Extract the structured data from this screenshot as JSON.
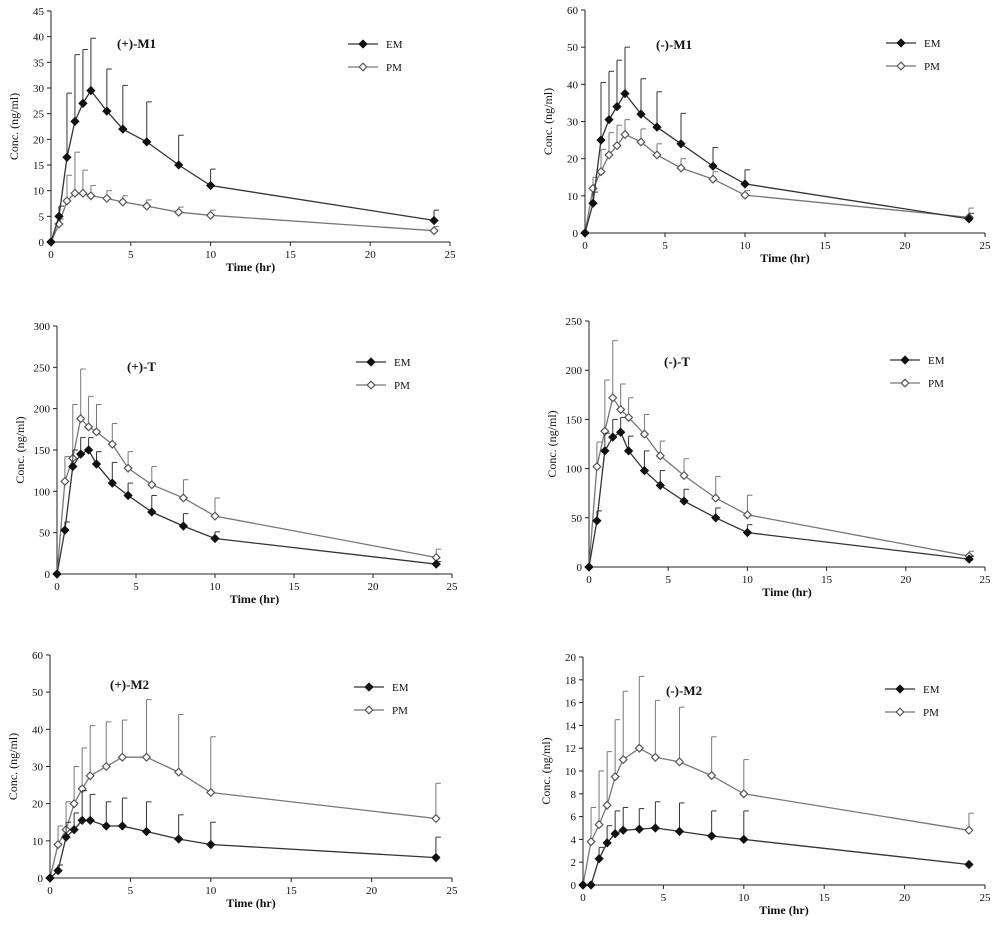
{
  "chart_data": [
    {
      "type": "line",
      "title": "(+)-M1",
      "xlabel": "Time (hr)",
      "ylabel": "Conc. (ng/ml)",
      "xlim": [
        0,
        25
      ],
      "ylim": [
        0,
        45
      ],
      "xticks": [
        0,
        5,
        10,
        15,
        20,
        25
      ],
      "yticks": [
        0,
        5,
        10,
        15,
        20,
        25,
        30,
        35,
        40,
        45
      ],
      "legend_position": "top-right",
      "x": [
        0,
        0.5,
        1,
        1.5,
        2,
        2.5,
        3.5,
        4.5,
        6,
        8,
        10,
        24
      ],
      "series": [
        {
          "name": "EM",
          "marker": "filled-diamond",
          "values": [
            0,
            5,
            16.5,
            23.5,
            27,
            29.5,
            25.5,
            22,
            19.5,
            15,
            11,
            4.2
          ],
          "error": [
            0,
            2,
            12.5,
            13,
            10.5,
            10.2,
            8.2,
            8.5,
            7.8,
            5.8,
            3.2,
            2
          ]
        },
        {
          "name": "PM",
          "marker": "open-diamond",
          "values": [
            0,
            3.5,
            8,
            9.5,
            9.5,
            9,
            8.5,
            7.8,
            7,
            5.8,
            5.2,
            2.2
          ],
          "error": [
            0,
            1,
            5,
            8,
            4.5,
            2,
            1.5,
            1.2,
            1.2,
            1,
            1,
            0.8
          ]
        }
      ]
    },
    {
      "type": "line",
      "title": "(-)-M1",
      "xlabel": "Time (hr)",
      "ylabel": "Conc. (ng/ml)",
      "xlim": [
        0,
        25
      ],
      "ylim": [
        0,
        60
      ],
      "xticks": [
        0,
        5,
        10,
        15,
        20,
        25
      ],
      "yticks": [
        0,
        10,
        20,
        30,
        40,
        50,
        60
      ],
      "legend_position": "top-right",
      "x": [
        0,
        0.5,
        1,
        1.5,
        2,
        2.5,
        3.5,
        4.5,
        6,
        8,
        10,
        24
      ],
      "series": [
        {
          "name": "EM",
          "marker": "filled-diamond",
          "values": [
            0,
            8,
            25,
            30.5,
            34,
            37.5,
            32,
            28.5,
            24,
            18,
            13.2,
            3.8
          ],
          "error": [
            0,
            3,
            15.5,
            13,
            12.5,
            12.5,
            9.5,
            9.5,
            8.2,
            5,
            3.8,
            1.5
          ]
        },
        {
          "name": "PM",
          "marker": "open-diamond",
          "values": [
            0,
            12,
            16.5,
            21,
            23.5,
            26.5,
            24.5,
            21,
            17.5,
            14.5,
            10.2,
            4.2
          ],
          "error": [
            0,
            3,
            6,
            6,
            5.5,
            4,
            3.5,
            3,
            2.5,
            2,
            1.2,
            2.5
          ]
        }
      ]
    },
    {
      "type": "line",
      "title": "(+)-T",
      "xlabel": "Time (hr)",
      "ylabel": "Conc. (ng/ml)",
      "xlim": [
        0,
        25
      ],
      "ylim": [
        0,
        300
      ],
      "xticks": [
        0,
        5,
        10,
        15,
        20,
        25
      ],
      "yticks": [
        0,
        50,
        100,
        150,
        200,
        250,
        300
      ],
      "legend_position": "top-right",
      "x": [
        0,
        0.5,
        1,
        1.5,
        2,
        2.5,
        3.5,
        4.5,
        6,
        8,
        10,
        24
      ],
      "series": [
        {
          "name": "EM",
          "marker": "filled-diamond",
          "values": [
            0,
            53,
            130,
            145,
            150,
            133,
            110,
            95,
            75,
            58,
            43,
            12
          ],
          "error": [
            0,
            10,
            20,
            20,
            15,
            15,
            25,
            15,
            20,
            15,
            8,
            3
          ]
        },
        {
          "name": "PM",
          "marker": "open-diamond",
          "values": [
            0,
            112,
            140,
            188,
            178,
            172,
            157,
            128,
            108,
            92,
            70,
            20
          ],
          "error": [
            0,
            30,
            65,
            60,
            37,
            33,
            25,
            20,
            22,
            22,
            22,
            10
          ]
        }
      ]
    },
    {
      "type": "line",
      "title": "(-)-T",
      "xlabel": "Time (hr)",
      "ylabel": "Conc. (ng/ml)",
      "xlim": [
        0,
        25
      ],
      "ylim": [
        0,
        250
      ],
      "xticks": [
        0,
        5,
        10,
        15,
        20,
        25
      ],
      "yticks": [
        0,
        50,
        100,
        150,
        200,
        250
      ],
      "legend_position": "top-right",
      "x": [
        0,
        0.5,
        1,
        1.5,
        2,
        2.5,
        3.5,
        4.5,
        6,
        8,
        10,
        24
      ],
      "series": [
        {
          "name": "EM",
          "marker": "filled-diamond",
          "values": [
            0,
            47,
            118,
            132,
            137,
            118,
            98,
            83,
            67,
            50,
            35,
            8
          ],
          "error": [
            0,
            10,
            18,
            18,
            15,
            15,
            20,
            15,
            12,
            10,
            8,
            3
          ]
        },
        {
          "name": "PM",
          "marker": "open-diamond",
          "values": [
            0,
            102,
            138,
            172,
            160,
            152,
            135,
            113,
            93,
            70,
            53,
            11
          ],
          "error": [
            0,
            25,
            52,
            58,
            26,
            20,
            20,
            15,
            17,
            22,
            20,
            5
          ]
        }
      ]
    },
    {
      "type": "line",
      "title": "(+)-M2",
      "xlabel": "Time (hr)",
      "ylabel": "Conc. (ng/ml)",
      "xlim": [
        0,
        25
      ],
      "ylim": [
        0,
        60
      ],
      "xticks": [
        0,
        5,
        10,
        15,
        20,
        25
      ],
      "yticks": [
        0,
        10,
        20,
        30,
        40,
        50,
        60
      ],
      "legend_position": "top-right",
      "x": [
        0,
        0.5,
        1,
        1.5,
        2,
        2.5,
        3.5,
        4.5,
        6,
        8,
        10,
        24
      ],
      "series": [
        {
          "name": "EM",
          "marker": "filled-diamond",
          "values": [
            0,
            2,
            11,
            13,
            15.5,
            15.5,
            14,
            14,
            12.5,
            10.5,
            9,
            5.5
          ],
          "error": [
            0,
            1.5,
            4,
            4.5,
            8,
            7,
            6.5,
            7.5,
            8,
            6.5,
            6,
            5.5
          ]
        },
        {
          "name": "PM",
          "marker": "open-diamond",
          "values": [
            0,
            9,
            13,
            20,
            24,
            27.5,
            30,
            32.5,
            32.5,
            28.5,
            23,
            16
          ],
          "error": [
            0,
            5,
            7.5,
            10,
            11,
            13.5,
            12,
            10,
            15.5,
            15.5,
            15,
            9.5
          ]
        }
      ]
    },
    {
      "type": "line",
      "title": "(-)-M2",
      "xlabel": "Time (hr)",
      "ylabel": "Conc. (ng/ml)",
      "xlim": [
        0,
        25
      ],
      "ylim": [
        0,
        20
      ],
      "xticks": [
        0,
        5,
        10,
        15,
        20,
        25
      ],
      "yticks": [
        0,
        2,
        4,
        6,
        8,
        10,
        12,
        14,
        16,
        18,
        20
      ],
      "legend_position": "top-right",
      "x": [
        0,
        0.5,
        1,
        1.5,
        2,
        2.5,
        3.5,
        4.5,
        6,
        8,
        10,
        24
      ],
      "series": [
        {
          "name": "EM",
          "marker": "filled-diamond",
          "values": [
            0,
            0,
            2.3,
            3.7,
            4.5,
            4.8,
            4.9,
            5,
            4.7,
            4.3,
            4,
            1.8
          ],
          "error": [
            0,
            0,
            1,
            1.5,
            2,
            2,
            1.8,
            2.3,
            2.5,
            2.2,
            2.5,
            0
          ]
        },
        {
          "name": "PM",
          "marker": "open-diamond",
          "values": [
            0,
            3.8,
            5.3,
            7,
            9.5,
            11,
            12,
            11.2,
            10.8,
            9.6,
            8,
            4.8
          ],
          "error": [
            0,
            3,
            4.7,
            4.7,
            5,
            6,
            6.3,
            5,
            4.8,
            3.4,
            3,
            1.5
          ]
        }
      ]
    }
  ]
}
